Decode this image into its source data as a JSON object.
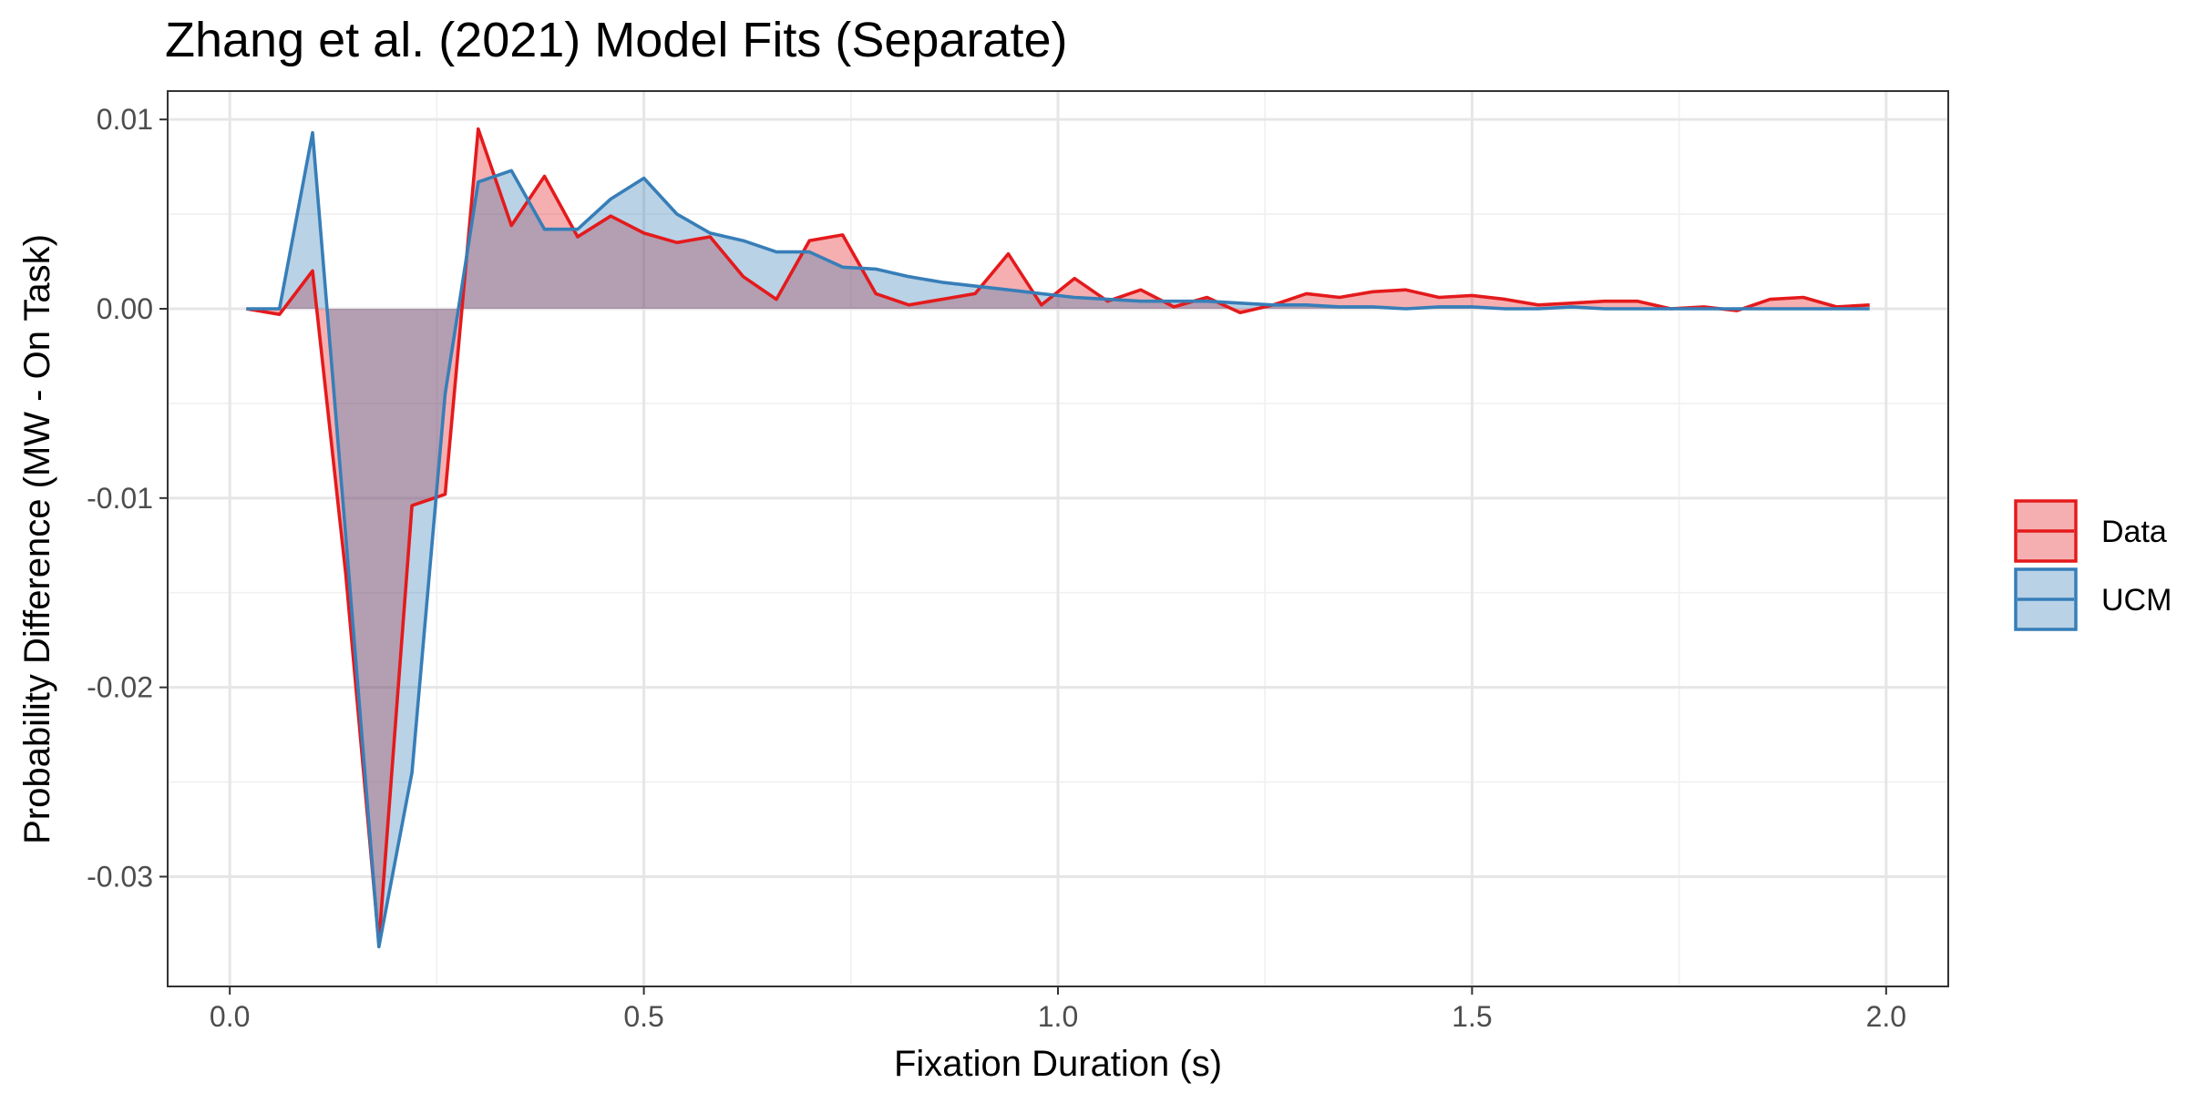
{
  "chart_data": {
    "type": "area",
    "title": "Zhang et al. (2021) Model Fits (Separate)",
    "xlabel": "Fixation Duration (s)",
    "ylabel": "Probability Difference (MW - On Task)",
    "xlim": [
      -0.075,
      2.075
    ],
    "ylim": [
      -0.0358,
      0.0115
    ],
    "x_ticks": [
      0.0,
      0.5,
      1.0,
      1.5,
      2.0
    ],
    "x_tick_labels": [
      "0.0",
      "0.5",
      "1.0",
      "1.5",
      "2.0"
    ],
    "y_ticks": [
      0.01,
      0.0,
      -0.01,
      -0.02,
      -0.03
    ],
    "y_tick_labels": [
      "0.01",
      "0.00",
      "-0.01",
      "-0.02",
      "-0.03"
    ],
    "grid": true,
    "legend_position": "right",
    "x": [
      0.02,
      0.06,
      0.1,
      0.14,
      0.18,
      0.22,
      0.26,
      0.3,
      0.34,
      0.38,
      0.42,
      0.46,
      0.5,
      0.54,
      0.58,
      0.62,
      0.66,
      0.7,
      0.74,
      0.78,
      0.82,
      0.86,
      0.9,
      0.94,
      0.98,
      1.02,
      1.06,
      1.1,
      1.14,
      1.18,
      1.22,
      1.26,
      1.3,
      1.34,
      1.38,
      1.42,
      1.46,
      1.5,
      1.54,
      1.58,
      1.62,
      1.66,
      1.7,
      1.74,
      1.78,
      1.82,
      1.86,
      1.9,
      1.94,
      1.98
    ],
    "series": [
      {
        "name": "Data",
        "color": "#e41a1c",
        "values": [
          0.0,
          -0.0003,
          0.002,
          -0.014,
          -0.0335,
          -0.0104,
          -0.0098,
          0.0095,
          0.0044,
          0.007,
          0.0038,
          0.0049,
          0.004,
          0.0035,
          0.0038,
          0.0017,
          0.0005,
          0.0036,
          0.0039,
          0.0008,
          0.0002,
          0.0005,
          0.0008,
          0.0029,
          0.0002,
          0.0016,
          0.0004,
          0.001,
          0.0001,
          0.0006,
          -0.0002,
          0.0002,
          0.0008,
          0.0006,
          0.0009,
          0.001,
          0.0006,
          0.0007,
          0.0005,
          0.0002,
          0.0003,
          0.0004,
          0.0004,
          0.0,
          0.0001,
          -0.0001,
          0.0005,
          0.0006,
          0.0001,
          0.0002
        ]
      },
      {
        "name": "UCM",
        "color": "#377eb8",
        "values": [
          0.0,
          0.0,
          0.0093,
          -0.012,
          -0.0337,
          -0.0245,
          -0.0045,
          0.0067,
          0.0073,
          0.0042,
          0.0042,
          0.0058,
          0.0069,
          0.005,
          0.004,
          0.0036,
          0.003,
          0.003,
          0.0022,
          0.0021,
          0.0017,
          0.0014,
          0.0012,
          0.001,
          0.0008,
          0.0006,
          0.0005,
          0.0004,
          0.0004,
          0.0004,
          0.0003,
          0.0002,
          0.0002,
          0.0001,
          0.0001,
          0.0,
          0.0001,
          0.0001,
          0.0,
          0.0,
          0.0001,
          0.0,
          0.0,
          0.0,
          0.0,
          0.0,
          0.0,
          0.0,
          0.0,
          0.0
        ]
      }
    ]
  }
}
